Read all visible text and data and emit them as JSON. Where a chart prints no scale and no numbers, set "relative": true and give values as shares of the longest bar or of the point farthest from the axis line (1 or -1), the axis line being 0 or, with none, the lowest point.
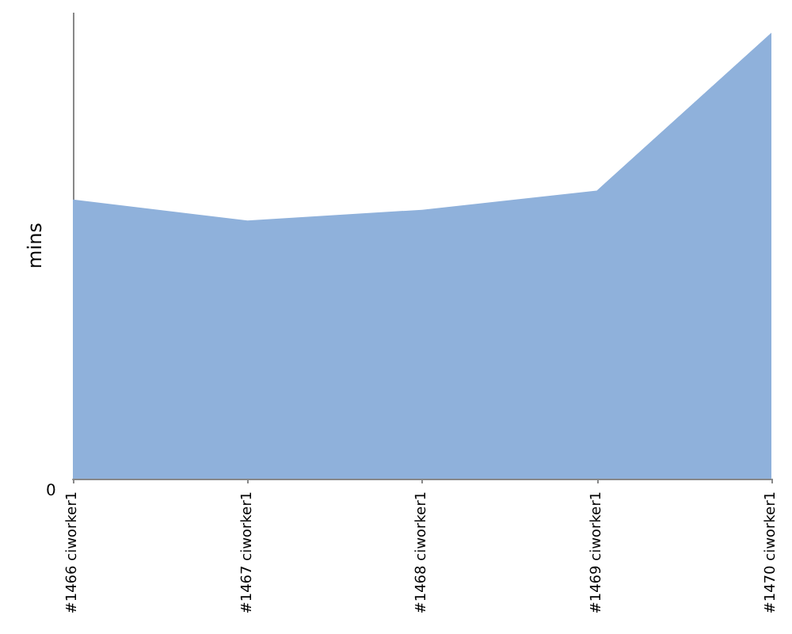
{
  "chart_data": {
    "type": "area",
    "ylabel": "mins",
    "relative": true,
    "categories": [
      "#1466 ciworker1",
      "#1467 ciworker1",
      "#1468 ciworker1",
      "#1469 ciworker1",
      "#1470 ciworker1"
    ],
    "series": [
      {
        "color": "#8fb1db",
        "values": [
          0.626,
          0.579,
          0.603,
          0.646,
          1
        ]
      }
    ],
    "annotations": [
      "0"
    ]
  }
}
